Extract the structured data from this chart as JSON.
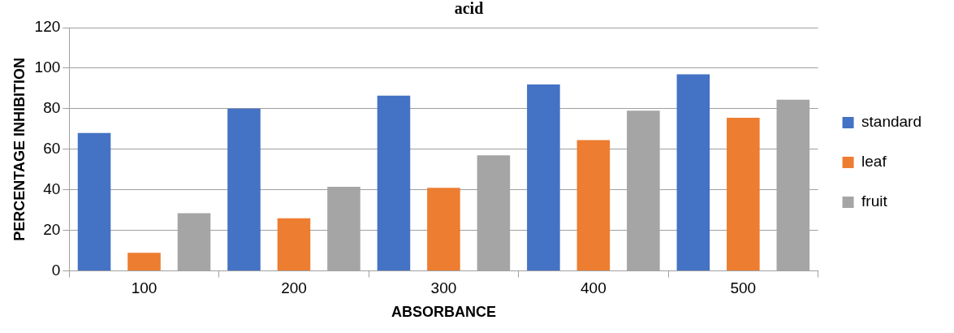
{
  "chart_data": {
    "type": "bar",
    "title": "acid",
    "xlabel": "ABSORBANCE",
    "ylabel": "PERCENTAGE INHIBITION",
    "categories": [
      "100",
      "200",
      "300",
      "400",
      "500"
    ],
    "series": [
      {
        "name": "standard",
        "color": "#4472c4",
        "values": [
          68,
          80,
          86.5,
          92,
          97
        ]
      },
      {
        "name": "leaf",
        "color": "#ed7d31",
        "values": [
          9,
          26,
          41,
          64.5,
          75.5
        ]
      },
      {
        "name": "fruit",
        "color": "#a5a5a5",
        "values": [
          28.5,
          41.5,
          57,
          79,
          84.5
        ]
      }
    ],
    "ylim": [
      0,
      120
    ],
    "yticks": [
      0,
      20,
      40,
      60,
      80,
      100,
      120
    ],
    "grid": "y",
    "legend": "right"
  }
}
